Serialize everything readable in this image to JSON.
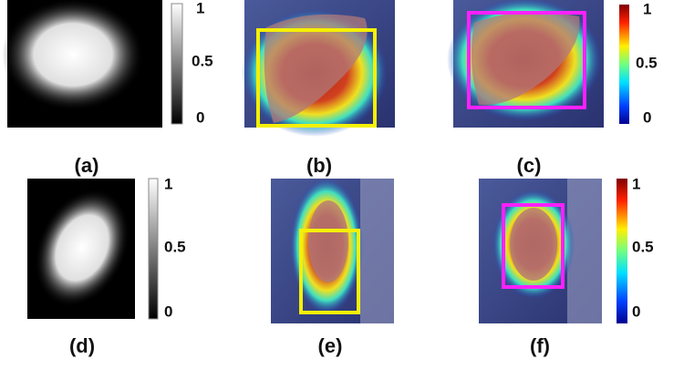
{
  "panels": [
    {
      "label": "(a)",
      "colorbar_ticks": [
        "1",
        "0.5",
        "0"
      ]
    },
    {
      "label": "(b)"
    },
    {
      "label": "(c)",
      "colorbar_ticks": [
        "1",
        "0.5",
        "0"
      ]
    },
    {
      "label": "(d)",
      "colorbar_ticks": [
        "1",
        "0.5",
        "0"
      ]
    },
    {
      "label": "(e)"
    },
    {
      "label": "(f)",
      "colorbar_ticks": [
        "1",
        "0.5",
        "0"
      ]
    }
  ]
}
